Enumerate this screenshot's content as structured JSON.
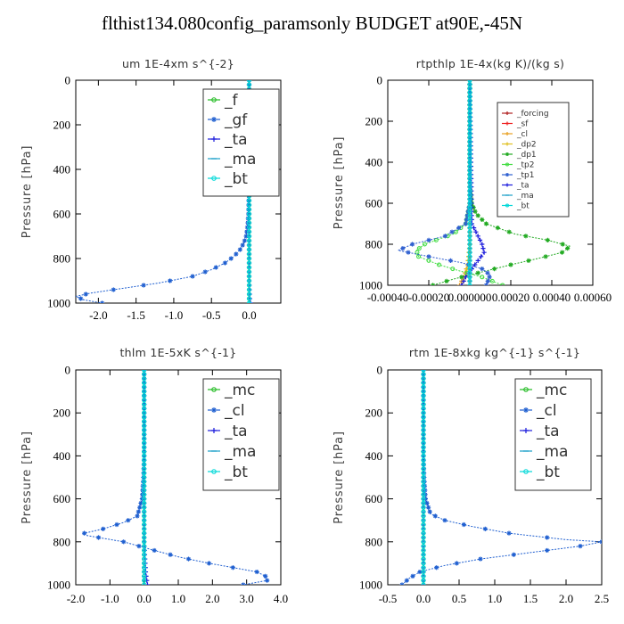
{
  "page": {
    "title": "flthist134.080config_paramsonly  BUDGET at90E,-45N"
  },
  "chart_data": [
    {
      "type": "line",
      "title": "um   1E-4xm s^{-2}",
      "ylabel": "Pressure [hPa]",
      "xlim": [
        -2.3,
        0.42
      ],
      "ylim": [
        1000,
        0
      ],
      "y_inverted": true,
      "xticks": [
        -2.0,
        -1.5,
        -1.0,
        -0.5,
        0.0
      ],
      "xtick_labels": [
        "-2.0",
        "-1.5",
        "-1.0",
        "-0.5",
        "0.0"
      ],
      "yticks": [
        0,
        200,
        400,
        600,
        800,
        1000
      ],
      "ytick_labels": [
        "0",
        "200",
        "400",
        "600",
        "800",
        "1000"
      ],
      "legend": {
        "position": "top-right",
        "font_size": 17,
        "entries": [
          "_f",
          "_gf",
          "_ta",
          "_ma",
          "_bt"
        ]
      },
      "series": [
        {
          "name": "_f",
          "color": "#22bb22",
          "marker": "circle",
          "pressure": [
            0,
            100,
            200,
            300,
            400,
            500,
            600,
            700,
            800,
            900,
            1000
          ],
          "values": [
            0,
            0,
            0,
            0,
            0,
            0,
            0,
            0,
            0,
            0,
            0
          ]
        },
        {
          "name": "_gf",
          "color": "#1f5fd0",
          "marker": "star",
          "pressure": [
            0,
            100,
            200,
            300,
            400,
            500,
            600,
            650,
            700,
            730,
            760,
            790,
            820,
            850,
            880,
            910,
            935,
            955,
            970,
            985,
            1000
          ],
          "values": [
            0,
            0,
            0,
            0,
            0,
            -0.005,
            -0.01,
            -0.02,
            -0.04,
            -0.07,
            -0.12,
            -0.2,
            -0.32,
            -0.5,
            -0.75,
            -1.2,
            -1.7,
            -2.1,
            -2.3,
            -2.2,
            -1.95
          ]
        },
        {
          "name": "_ta",
          "color": "#1a1adc",
          "marker": "plus",
          "pressure": [
            0,
            200,
            400,
            600,
            800,
            900,
            950,
            990,
            1000
          ],
          "values": [
            0,
            0,
            0,
            0,
            0,
            0,
            0.005,
            0.01,
            0.02
          ]
        },
        {
          "name": "_ma",
          "color": "#1aa0c8",
          "marker": "dash",
          "pressure": [
            0,
            200,
            400,
            600,
            800,
            1000
          ],
          "values": [
            0,
            0,
            0,
            0,
            0,
            0
          ]
        },
        {
          "name": "_bt",
          "color": "#00d8d8",
          "marker": "circle",
          "pressure": [
            0,
            200,
            400,
            600,
            800,
            1000
          ],
          "values": [
            0,
            0,
            0,
            0,
            0,
            0
          ]
        }
      ]
    },
    {
      "type": "line",
      "title": "rtpthlp   1E-4x(kg K)/(kg s)",
      "ylabel": "Pressure [hPa]",
      "xlim": [
        -0.0004,
        0.0006
      ],
      "ylim": [
        1000,
        0
      ],
      "y_inverted": true,
      "xticks": [
        -0.0004,
        -0.0002,
        0.0,
        0.0002,
        0.0004,
        0.0006
      ],
      "xtick_labels": [
        "-0.00040",
        "-0.00020",
        "0.000000",
        "0.00020",
        "0.00040",
        "0.00060"
      ],
      "yticks": [
        0,
        200,
        400,
        600,
        800,
        1000
      ],
      "ytick_labels": [
        "0",
        "200",
        "400",
        "600",
        "800",
        "1000"
      ],
      "legend": {
        "position": "top-right",
        "font_size": 9,
        "entries": [
          "_forcing",
          "_sf",
          "_cl",
          "_dp2",
          "_dp1",
          "_tp2",
          "_tp1",
          "_ta",
          "_ma",
          "_bt"
        ]
      },
      "series": [
        {
          "name": "_forcing",
          "color": "#b02020",
          "marker": "plus",
          "pressure": [
            0,
            200,
            400,
            600,
            800,
            1000
          ],
          "values": [
            0,
            0,
            0,
            0,
            0,
            0
          ]
        },
        {
          "name": "_sf",
          "color": "#ee2020",
          "marker": "plus",
          "pressure": [
            0,
            200,
            400,
            600,
            800,
            1000
          ],
          "values": [
            0,
            0,
            0,
            0,
            0,
            0
          ]
        },
        {
          "name": "_cl",
          "color": "#e8a020",
          "marker": "plus",
          "pressure": [
            0,
            600,
            800,
            900,
            960,
            1000
          ],
          "values": [
            0,
            0,
            0,
            -1e-05,
            -3e-05,
            -5e-05
          ]
        },
        {
          "name": "_dp2",
          "color": "#e0c020",
          "marker": "plus",
          "pressure": [
            0,
            600,
            800,
            900,
            960,
            1000
          ],
          "values": [
            0,
            0,
            0,
            -1e-05,
            -2e-05,
            -4e-05
          ]
        },
        {
          "name": "_dp1",
          "color": "#22aa22",
          "marker": "star",
          "pressure": [
            0,
            500,
            600,
            650,
            700,
            750,
            780,
            810,
            840,
            870,
            900,
            930,
            950,
            970,
            1000
          ],
          "values": [
            0,
            0,
            1e-05,
            3e-05,
            8e-05,
            0.00022,
            0.00038,
            0.00049,
            0.00045,
            0.00033,
            0.0002,
            8e-05,
            0.0,
            -8e-05,
            -0.00018
          ]
        },
        {
          "name": "_tp2",
          "color": "#44dd44",
          "marker": "circle",
          "pressure": [
            0,
            600,
            700,
            750,
            800,
            830,
            860,
            900,
            930,
            960,
            1000
          ],
          "values": [
            0,
            0,
            -2e-05,
            -8e-05,
            -0.00022,
            -0.00026,
            -0.00025,
            -0.00015,
            -5e-05,
            6e-05,
            0.00016
          ]
        },
        {
          "name": "_tp1",
          "color": "#3060d0",
          "marker": "star",
          "pressure": [
            0,
            600,
            700,
            760,
            800,
            830,
            860,
            890,
            920,
            950,
            1000
          ],
          "values": [
            0,
            0,
            -2e-05,
            -0.00012,
            -0.00028,
            -0.00035,
            -0.0002,
            -4e-05,
            6e-05,
            0.0001,
            8e-05
          ]
        },
        {
          "name": "_ta",
          "color": "#1a1adc",
          "marker": "plus",
          "pressure": [
            0,
            700,
            760,
            800,
            840,
            880,
            920,
            960,
            1000
          ],
          "values": [
            0,
            1e-05,
            4e-05,
            6e-05,
            7e-05,
            4e-05,
            1e-05,
            -2e-05,
            -4e-05
          ]
        },
        {
          "name": "_ma",
          "color": "#1aa0c8",
          "marker": "dash",
          "pressure": [
            0,
            1000
          ],
          "values": [
            0,
            0
          ]
        },
        {
          "name": "_bt",
          "color": "#00d8d8",
          "marker": "circle",
          "pressure": [
            0,
            1000
          ],
          "values": [
            0,
            0
          ]
        }
      ]
    },
    {
      "type": "line",
      "title": "thlm   1E-5xK s^{-1}",
      "ylabel": "Pressure [hPa]",
      "xlim": [
        -2.0,
        4.0
      ],
      "ylim": [
        1000,
        0
      ],
      "y_inverted": true,
      "xticks": [
        -2.0,
        -1.0,
        0.0,
        1.0,
        2.0,
        3.0,
        4.0
      ],
      "xtick_labels": [
        "-2.0",
        "-1.0",
        "0.0",
        "1.0",
        "2.0",
        "3.0",
        "4.0"
      ],
      "yticks": [
        0,
        200,
        400,
        600,
        800,
        1000
      ],
      "ytick_labels": [
        "0",
        "200",
        "400",
        "600",
        "800",
        "1000"
      ],
      "legend": {
        "position": "top-right",
        "font_size": 17,
        "entries": [
          "_mc",
          "_cl",
          "_ta",
          "_ma",
          "_bt"
        ]
      },
      "series": [
        {
          "name": "_mc",
          "color": "#22bb22",
          "marker": "circle",
          "pressure": [
            0,
            100,
            200,
            300,
            400,
            500,
            600,
            700,
            800,
            900,
            1000
          ],
          "values": [
            0,
            0,
            0,
            0,
            0,
            0,
            0,
            0,
            0,
            0,
            0
          ]
        },
        {
          "name": "_cl",
          "color": "#1f5fd0",
          "marker": "star",
          "pressure": [
            0,
            400,
            500,
            600,
            680,
            710,
            740,
            760,
            770,
            800,
            840,
            870,
            900,
            920,
            940,
            960,
            980,
            1000
          ],
          "values": [
            0,
            0,
            -0.02,
            -0.06,
            -0.2,
            -0.6,
            -1.2,
            -1.75,
            -1.7,
            -0.6,
            0.3,
            1.0,
            1.9,
            2.6,
            3.3,
            3.55,
            3.6,
            2.9
          ]
        },
        {
          "name": "_ta",
          "color": "#1a1adc",
          "marker": "plus",
          "pressure": [
            0,
            400,
            800,
            950,
            1000
          ],
          "values": [
            0,
            0,
            0,
            0.05,
            0.1
          ]
        },
        {
          "name": "_ma",
          "color": "#1aa0c8",
          "marker": "dash",
          "pressure": [
            0,
            1000
          ],
          "values": [
            0,
            0
          ]
        },
        {
          "name": "_bt",
          "color": "#00d8d8",
          "marker": "circle",
          "pressure": [
            0,
            1000
          ],
          "values": [
            0,
            0
          ]
        }
      ]
    },
    {
      "type": "line",
      "title": "rtm   1E-8xkg kg^{-1} s^{-1}",
      "ylabel": "Pressure [hPa]",
      "xlim": [
        -0.5,
        2.5
      ],
      "ylim": [
        1000,
        0
      ],
      "y_inverted": true,
      "xticks": [
        -0.5,
        0.0,
        0.5,
        1.0,
        1.5,
        2.0,
        2.5
      ],
      "xtick_labels": [
        "-0.5",
        "0.0",
        "0.5",
        "1.0",
        "1.5",
        "2.0",
        "2.5"
      ],
      "yticks": [
        0,
        200,
        400,
        600,
        800,
        1000
      ],
      "ytick_labels": [
        "0",
        "200",
        "400",
        "600",
        "800",
        "1000"
      ],
      "legend": {
        "position": "top-right",
        "font_size": 17,
        "entries": [
          "_mc",
          "_cl",
          "_ta",
          "_ma",
          "_bt"
        ]
      },
      "series": [
        {
          "name": "_mc",
          "color": "#22bb22",
          "marker": "circle",
          "pressure": [
            0,
            100,
            200,
            300,
            400,
            500,
            600,
            700,
            800,
            900,
            1000
          ],
          "values": [
            0,
            0,
            0,
            0,
            0,
            0,
            0,
            0,
            0,
            0,
            0
          ]
        },
        {
          "name": "_cl",
          "color": "#1f5fd0",
          "marker": "star",
          "pressure": [
            0,
            400,
            500,
            600,
            670,
            700,
            730,
            760,
            790,
            800,
            820,
            850,
            880,
            910,
            940,
            970,
            1000
          ],
          "values": [
            0,
            0,
            0.01,
            0.03,
            0.1,
            0.3,
            0.7,
            1.2,
            2.0,
            2.5,
            2.2,
            1.5,
            0.8,
            0.3,
            -0.05,
            -0.2,
            -0.3
          ]
        },
        {
          "name": "_ta",
          "color": "#1a1adc",
          "marker": "plus",
          "pressure": [
            0,
            400,
            800,
            1000
          ],
          "values": [
            0,
            0,
            0,
            0
          ]
        },
        {
          "name": "_ma",
          "color": "#1aa0c8",
          "marker": "dash",
          "pressure": [
            0,
            1000
          ],
          "values": [
            0,
            0
          ]
        },
        {
          "name": "_bt",
          "color": "#00d8d8",
          "marker": "circle",
          "pressure": [
            0,
            1000
          ],
          "values": [
            0,
            0
          ]
        }
      ]
    }
  ]
}
